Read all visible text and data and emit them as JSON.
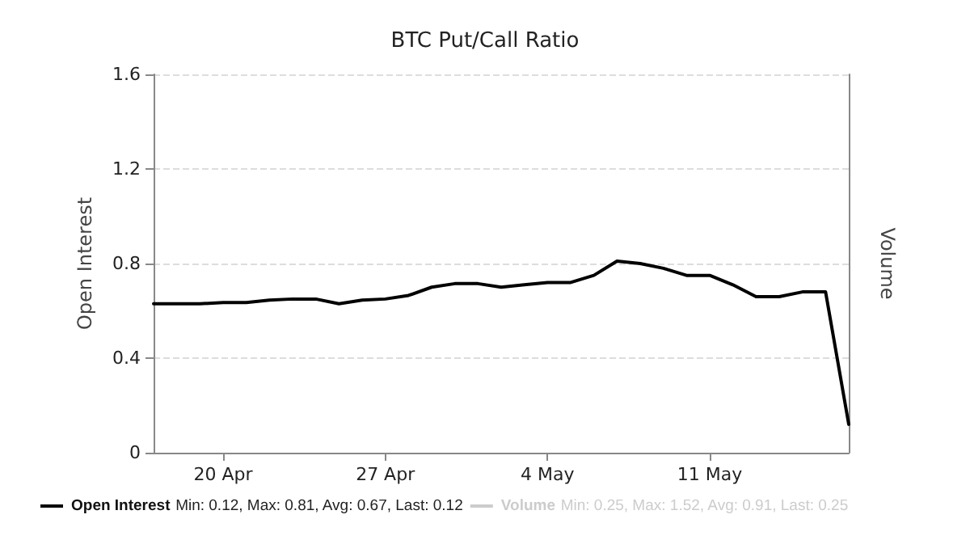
{
  "chart_data": {
    "type": "line",
    "title": "BTC Put/Call Ratio",
    "ylabel": "Open Interest",
    "y2label": "Volume",
    "x": [
      "--04-17",
      "--04-18",
      "--04-19",
      "--04-20",
      "--04-21",
      "--04-22",
      "--04-23",
      "--04-24",
      "--04-25",
      "--04-26",
      "--04-27",
      "--04-28",
      "--04-29",
      "--04-30",
      "--05-01",
      "--05-02",
      "--05-03",
      "--05-04",
      "--05-05",
      "--05-06",
      "--05-07",
      "--05-08",
      "--05-09",
      "--05-10",
      "--05-11",
      "--05-12",
      "--05-13",
      "--05-14",
      "--05-15",
      "--05-16",
      "--05-17"
    ],
    "series": [
      {
        "name": "Open Interest",
        "color": "#000000",
        "values": [
          0.63,
          0.63,
          0.63,
          0.635,
          0.635,
          0.645,
          0.65,
          0.65,
          0.63,
          0.645,
          0.65,
          0.665,
          0.7,
          0.715,
          0.715,
          0.7,
          0.71,
          0.72,
          0.72,
          0.75,
          0.81,
          0.8,
          0.78,
          0.75,
          0.75,
          0.71,
          0.66,
          0.66,
          0.68,
          0.68,
          0.12
        ]
      },
      {
        "name": "Volume",
        "color": "#cccccc",
        "values": [
          null,
          null,
          null,
          null,
          null,
          null,
          null,
          null,
          null,
          null,
          null,
          null,
          null,
          null,
          null,
          null,
          null,
          null,
          null,
          null,
          null,
          null,
          null,
          null,
          null,
          null,
          null,
          null,
          null,
          null,
          null
        ]
      }
    ],
    "annotations": [
      "Min: 0.12, Max: 0.81, Avg: 0.67, Last: 0.12",
      "Min: 0.25, Max: 1.52, Avg: 0.91, Last: 0.25"
    ],
    "xlim": [
      "--04-17",
      "--05-17"
    ],
    "xticks": [
      {
        "value": "--04-20",
        "label": "20 Apr"
      },
      {
        "value": "--04-27",
        "label": "27 Apr"
      },
      {
        "value": "--05-04",
        "label": "4 May"
      },
      {
        "value": "--05-11",
        "label": "11 May"
      }
    ],
    "ylim": [
      0,
      1.6
    ],
    "yticks": [
      0,
      0.4,
      0.8,
      1.2,
      1.6
    ],
    "grid": "y",
    "legend": "bottom left",
    "marker": "none",
    "line_style": "solid"
  }
}
